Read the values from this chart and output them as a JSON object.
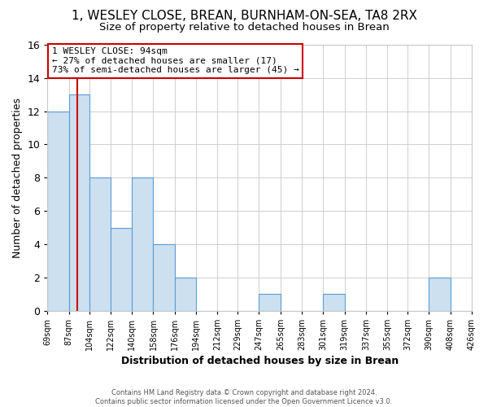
{
  "title": "1, WESLEY CLOSE, BREAN, BURNHAM-ON-SEA, TA8 2RX",
  "subtitle": "Size of property relative to detached houses in Brean",
  "xlabel": "Distribution of detached houses by size in Brean",
  "ylabel": "Number of detached properties",
  "bin_edges": [
    69,
    87,
    104,
    122,
    140,
    158,
    176,
    194,
    212,
    229,
    247,
    265,
    283,
    301,
    319,
    337,
    355,
    372,
    390,
    408,
    426
  ],
  "bin_labels": [
    "69sqm",
    "87sqm",
    "104sqm",
    "122sqm",
    "140sqm",
    "158sqm",
    "176sqm",
    "194sqm",
    "212sqm",
    "229sqm",
    "247sqm",
    "265sqm",
    "283sqm",
    "301sqm",
    "319sqm",
    "337sqm",
    "355sqm",
    "372sqm",
    "390sqm",
    "408sqm",
    "426sqm"
  ],
  "counts": [
    12,
    13,
    8,
    5,
    8,
    4,
    2,
    0,
    0,
    0,
    1,
    0,
    0,
    1,
    0,
    0,
    0,
    0,
    2,
    0
  ],
  "bar_color": "#cce0f0",
  "bar_edge_color": "#5b9bd5",
  "grid_color": "#c8c8c8",
  "background_color": "#ffffff",
  "vline_x": 94,
  "vline_color": "#cc0000",
  "annotation_title": "1 WESLEY CLOSE: 94sqm",
  "annotation_line1": "← 27% of detached houses are smaller (17)",
  "annotation_line2": "73% of semi-detached houses are larger (45) →",
  "annotation_box_edge": "#cc0000",
  "ylim": [
    0,
    16
  ],
  "yticks": [
    0,
    2,
    4,
    6,
    8,
    10,
    12,
    14,
    16
  ],
  "footer1": "Contains HM Land Registry data © Crown copyright and database right 2024.",
  "footer2": "Contains public sector information licensed under the Open Government Licence v3.0."
}
